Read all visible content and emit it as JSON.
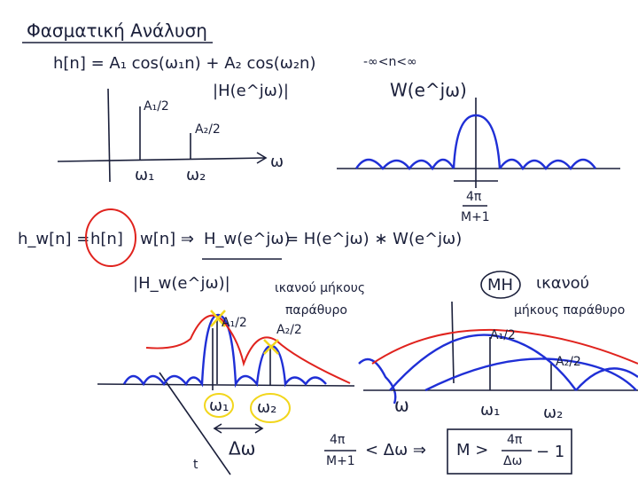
{
  "title": "Φασματική Ανάλυση",
  "signal": {
    "equation": "h[n] = A₁ cos(ω₁n) + A₂ cos(ω₂n)",
    "range": "-∞<n<∞"
  },
  "spectrum": {
    "label": "|H(e^jω)|",
    "peak1": "A₁/2",
    "peak2": "A₂/2",
    "freq1": "ω₁",
    "freq2": "ω₂",
    "axis": "ω"
  },
  "window": {
    "label": "W(e^jω)",
    "width_num": "4π",
    "width_den": "M+1"
  },
  "windowing": {
    "lhs": "h_w[n] =",
    "h": "h[n]",
    "rest": "w[n] ⇒",
    "hw": "H_w(e^jω)",
    "rhs": "= H(e^jω) ∗ W(e^jω)"
  },
  "windowed": {
    "label": "|H_w(e^jω)|",
    "note1": "ικανού μήκους",
    "note2": "παράθυρο",
    "peak1": "A₁/2",
    "peak2": "A₂/2",
    "freq1": "ω₁",
    "freq2": "ω₂",
    "delta": "Δω",
    "axis": "ω",
    "t": "t"
  },
  "short": {
    "not": "ΜΗ",
    "note1": "ικανού",
    "note2": "μήκους παράθυρο",
    "peak1": "A₁/2",
    "peak2": "A₂/2",
    "freq1": "ω₁",
    "freq2": "ω₂"
  },
  "condition": {
    "num": "4π",
    "den": "M+1",
    "mid": "< Δω ⇒",
    "boxed": "M >",
    "bnum": "4π",
    "bden": "Δω",
    "tail": "− 1"
  }
}
